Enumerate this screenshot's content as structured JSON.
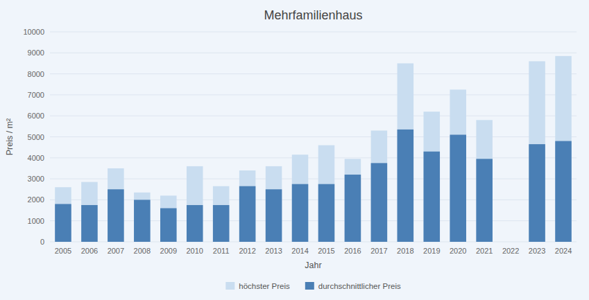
{
  "chart_data": {
    "type": "bar",
    "title": "Mehrfamilienhaus",
    "xlabel": "Jahr",
    "ylabel": "Preis / m²",
    "categories": [
      "2005",
      "2006",
      "2007",
      "2008",
      "2009",
      "2010",
      "2011",
      "2012",
      "2013",
      "2014",
      "2015",
      "2016",
      "2017",
      "2018",
      "2019",
      "2020",
      "2021",
      "2022",
      "2023",
      "2024"
    ],
    "series": [
      {
        "name": "höchster Preis",
        "color": "#c9ddf0",
        "values": [
          2600,
          2850,
          3500,
          2350,
          2200,
          3600,
          2650,
          3400,
          3600,
          4150,
          4600,
          3950,
          5300,
          8500,
          6200,
          7250,
          5800,
          0,
          8600,
          8850
        ]
      },
      {
        "name": "durchschnittlicher Preis",
        "color": "#4a7fb5",
        "values": [
          1800,
          1750,
          2500,
          2000,
          1600,
          1750,
          1750,
          2650,
          2500,
          2750,
          2750,
          3200,
          3750,
          5350,
          4300,
          5100,
          3950,
          0,
          4650,
          4800
        ]
      }
    ],
    "ylim": [
      0,
      10000
    ],
    "yticks": [
      0,
      1000,
      2000,
      3000,
      4000,
      5000,
      6000,
      7000,
      8000,
      9000,
      10000
    ],
    "grid": true,
    "legend": "bottom"
  }
}
